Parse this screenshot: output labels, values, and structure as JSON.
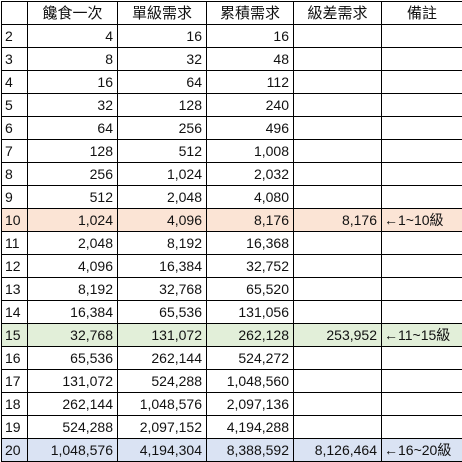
{
  "columns": [
    "",
    "饞食一次",
    "單級需求",
    "累積需求",
    "級差需求",
    "備註"
  ],
  "rows": [
    {
      "level": "2",
      "per": "4",
      "single": "16",
      "cum": "16",
      "diff": "",
      "note": "",
      "hl": ""
    },
    {
      "level": "3",
      "per": "8",
      "single": "32",
      "cum": "48",
      "diff": "",
      "note": "",
      "hl": ""
    },
    {
      "level": "4",
      "per": "16",
      "single": "64",
      "cum": "112",
      "diff": "",
      "note": "",
      "hl": ""
    },
    {
      "level": "5",
      "per": "32",
      "single": "128",
      "cum": "240",
      "diff": "",
      "note": "",
      "hl": ""
    },
    {
      "level": "6",
      "per": "64",
      "single": "256",
      "cum": "496",
      "diff": "",
      "note": "",
      "hl": ""
    },
    {
      "level": "7",
      "per": "128",
      "single": "512",
      "cum": "1,008",
      "diff": "",
      "note": "",
      "hl": ""
    },
    {
      "level": "8",
      "per": "256",
      "single": "1,024",
      "cum": "2,032",
      "diff": "",
      "note": "",
      "hl": ""
    },
    {
      "level": "9",
      "per": "512",
      "single": "2,048",
      "cum": "4,080",
      "diff": "",
      "note": "",
      "hl": ""
    },
    {
      "level": "10",
      "per": "1,024",
      "single": "4,096",
      "cum": "8,176",
      "diff": "8,176",
      "note": "←1~10級",
      "hl": "orange"
    },
    {
      "level": "11",
      "per": "2,048",
      "single": "8,192",
      "cum": "16,368",
      "diff": "",
      "note": "",
      "hl": ""
    },
    {
      "level": "12",
      "per": "4,096",
      "single": "16,384",
      "cum": "32,752",
      "diff": "",
      "note": "",
      "hl": ""
    },
    {
      "level": "13",
      "per": "8,192",
      "single": "32,768",
      "cum": "65,520",
      "diff": "",
      "note": "",
      "hl": ""
    },
    {
      "level": "14",
      "per": "16,384",
      "single": "65,536",
      "cum": "131,056",
      "diff": "",
      "note": "",
      "hl": ""
    },
    {
      "level": "15",
      "per": "32,768",
      "single": "131,072",
      "cum": "262,128",
      "diff": "253,952",
      "note": "←11~15級",
      "hl": "green"
    },
    {
      "level": "16",
      "per": "65,536",
      "single": "262,144",
      "cum": "524,272",
      "diff": "",
      "note": "",
      "hl": ""
    },
    {
      "level": "17",
      "per": "131,072",
      "single": "524,288",
      "cum": "1,048,560",
      "diff": "",
      "note": "",
      "hl": ""
    },
    {
      "level": "18",
      "per": "262,144",
      "single": "1,048,576",
      "cum": "2,097,136",
      "diff": "",
      "note": "",
      "hl": ""
    },
    {
      "level": "19",
      "per": "524,288",
      "single": "2,097,152",
      "cum": "4,194,288",
      "diff": "",
      "note": "",
      "hl": ""
    },
    {
      "level": "20",
      "per": "1,048,576",
      "single": "4,194,304",
      "cum": "8,388,592",
      "diff": "8,126,464",
      "note": "←16~20級",
      "hl": "blue"
    }
  ],
  "colors": {
    "orange": "#fbe4d5",
    "green": "#e2efd9",
    "blue": "#dae3f3"
  }
}
